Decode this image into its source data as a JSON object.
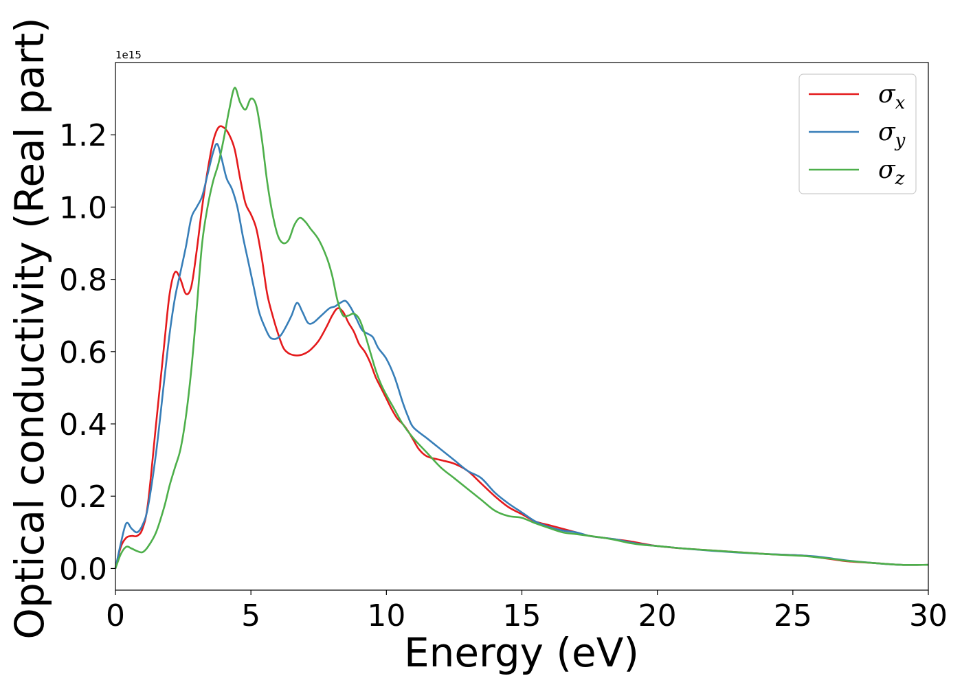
{
  "chart_data": {
    "type": "line",
    "xlabel": "Energy (eV)",
    "ylabel": "Optical conductivity (Real part)",
    "y_offset_text": "1e15",
    "xlim": [
      0,
      30
    ],
    "ylim": [
      -0.06,
      1.4
    ],
    "x_ticks": [
      0,
      5,
      10,
      15,
      20,
      25,
      30
    ],
    "x_tick_labels": [
      "0",
      "5",
      "10",
      "15",
      "20",
      "25",
      "30"
    ],
    "y_ticks": [
      0.0,
      0.2,
      0.4,
      0.6,
      0.8,
      1.0,
      1.2
    ],
    "y_tick_labels": [
      "0.0",
      "0.2",
      "0.4",
      "0.6",
      "0.8",
      "1.0",
      "1.2"
    ],
    "grid": false,
    "legend_position": "top-right",
    "series": [
      {
        "name": "σx",
        "label_base": "σ",
        "label_sub": "x",
        "color": "#e41a1c",
        "x": [
          0,
          0.2,
          0.4,
          0.6,
          0.8,
          1.0,
          1.2,
          1.5,
          1.8,
          2.0,
          2.2,
          2.4,
          2.6,
          2.8,
          3.0,
          3.2,
          3.4,
          3.6,
          3.8,
          4.0,
          4.2,
          4.4,
          4.6,
          4.8,
          5.0,
          5.2,
          5.4,
          5.6,
          5.8,
          6.0,
          6.2,
          6.4,
          6.6,
          6.8,
          7.0,
          7.2,
          7.5,
          7.8,
          8.0,
          8.2,
          8.4,
          8.6,
          8.8,
          9.0,
          9.2,
          9.4,
          9.6,
          9.8,
          10.0,
          10.2,
          10.4,
          10.6,
          10.8,
          11.0,
          11.2,
          11.5,
          12.0,
          12.5,
          13.0,
          13.5,
          14.0,
          14.5,
          15.0,
          15.5,
          16.0,
          16.5,
          17.0,
          17.5,
          18.0,
          18.5,
          19.0,
          19.5,
          20.0,
          21.0,
          22.0,
          23.0,
          24.0,
          25.0,
          25.5,
          26.0,
          26.5,
          27.0,
          28.0,
          29.0,
          30.0
        ],
        "y": [
          0.0,
          0.06,
          0.085,
          0.09,
          0.09,
          0.11,
          0.18,
          0.4,
          0.62,
          0.76,
          0.82,
          0.8,
          0.76,
          0.78,
          0.88,
          1.0,
          1.1,
          1.18,
          1.22,
          1.22,
          1.2,
          1.16,
          1.08,
          1.01,
          0.98,
          0.94,
          0.86,
          0.76,
          0.7,
          0.65,
          0.61,
          0.595,
          0.59,
          0.59,
          0.595,
          0.605,
          0.63,
          0.67,
          0.7,
          0.72,
          0.71,
          0.68,
          0.655,
          0.62,
          0.6,
          0.57,
          0.53,
          0.5,
          0.47,
          0.44,
          0.415,
          0.4,
          0.38,
          0.355,
          0.33,
          0.31,
          0.3,
          0.29,
          0.27,
          0.235,
          0.2,
          0.17,
          0.15,
          0.13,
          0.12,
          0.11,
          0.1,
          0.09,
          0.085,
          0.08,
          0.075,
          0.068,
          0.062,
          0.055,
          0.05,
          0.045,
          0.04,
          0.037,
          0.035,
          0.03,
          0.025,
          0.02,
          0.015,
          0.01,
          0.01
        ]
      },
      {
        "name": "σy",
        "label_base": "σ",
        "label_sub": "y",
        "color": "#377eb8",
        "x": [
          0,
          0.2,
          0.4,
          0.6,
          0.8,
          1.0,
          1.2,
          1.5,
          1.8,
          2.0,
          2.2,
          2.4,
          2.6,
          2.8,
          3.0,
          3.2,
          3.4,
          3.6,
          3.75,
          3.9,
          4.1,
          4.3,
          4.5,
          4.7,
          4.9,
          5.1,
          5.3,
          5.5,
          5.7,
          5.9,
          6.1,
          6.3,
          6.5,
          6.7,
          6.9,
          7.1,
          7.3,
          7.6,
          7.9,
          8.1,
          8.3,
          8.5,
          8.7,
          8.9,
          9.1,
          9.3,
          9.5,
          9.7,
          10.0,
          10.3,
          10.6,
          10.8,
          11.0,
          11.5,
          12.0,
          12.5,
          13.0,
          13.5,
          14.0,
          14.5,
          15.0,
          15.5,
          16.0,
          16.5,
          17.0,
          17.5,
          18.0,
          18.5,
          19.0,
          19.5,
          20.0,
          21.0,
          22.0,
          23.0,
          24.0,
          25.0,
          25.5,
          26.0,
          26.5,
          27.0,
          28.0,
          29.0,
          30.0
        ],
        "y": [
          0.0,
          0.07,
          0.125,
          0.11,
          0.1,
          0.12,
          0.17,
          0.32,
          0.52,
          0.65,
          0.75,
          0.82,
          0.89,
          0.97,
          1.0,
          1.03,
          1.09,
          1.15,
          1.175,
          1.14,
          1.08,
          1.05,
          1.0,
          0.92,
          0.85,
          0.78,
          0.71,
          0.67,
          0.64,
          0.635,
          0.645,
          0.67,
          0.7,
          0.735,
          0.71,
          0.68,
          0.68,
          0.7,
          0.72,
          0.725,
          0.735,
          0.74,
          0.72,
          0.69,
          0.66,
          0.65,
          0.64,
          0.61,
          0.58,
          0.53,
          0.46,
          0.42,
          0.39,
          0.36,
          0.33,
          0.3,
          0.27,
          0.25,
          0.21,
          0.18,
          0.155,
          0.13,
          0.115,
          0.105,
          0.1,
          0.09,
          0.085,
          0.08,
          0.072,
          0.066,
          0.062,
          0.055,
          0.049,
          0.044,
          0.04,
          0.037,
          0.035,
          0.032,
          0.027,
          0.022,
          0.015,
          0.01,
          0.01
        ]
      },
      {
        "name": "σz",
        "label_base": "σ",
        "label_sub": "z",
        "color": "#4daf4a",
        "x": [
          0,
          0.2,
          0.4,
          0.6,
          0.8,
          1.0,
          1.2,
          1.5,
          1.8,
          2.0,
          2.2,
          2.4,
          2.6,
          2.8,
          3.0,
          3.2,
          3.4,
          3.6,
          3.8,
          4.0,
          4.2,
          4.4,
          4.6,
          4.8,
          5.0,
          5.2,
          5.4,
          5.6,
          5.8,
          6.0,
          6.2,
          6.4,
          6.6,
          6.8,
          7.0,
          7.2,
          7.5,
          7.8,
          8.0,
          8.2,
          8.4,
          8.6,
          8.8,
          9.0,
          9.2,
          9.4,
          9.6,
          9.8,
          10.0,
          10.3,
          10.6,
          11.0,
          11.5,
          12.0,
          12.5,
          13.0,
          13.5,
          14.0,
          14.5,
          15.0,
          15.5,
          16.0,
          16.5,
          17.0,
          17.5,
          18.0,
          18.5,
          19.0,
          19.5,
          20.0,
          21.0,
          22.0,
          23.0,
          24.0,
          25.0,
          25.5,
          26.0,
          26.5,
          27.0,
          28.0,
          29.0,
          30.0
        ],
        "y": [
          0.0,
          0.04,
          0.06,
          0.055,
          0.048,
          0.045,
          0.06,
          0.1,
          0.17,
          0.23,
          0.28,
          0.33,
          0.42,
          0.55,
          0.72,
          0.9,
          1.0,
          1.07,
          1.12,
          1.19,
          1.27,
          1.33,
          1.29,
          1.27,
          1.3,
          1.28,
          1.19,
          1.07,
          0.98,
          0.92,
          0.9,
          0.91,
          0.95,
          0.97,
          0.96,
          0.94,
          0.91,
          0.86,
          0.81,
          0.74,
          0.7,
          0.7,
          0.705,
          0.69,
          0.65,
          0.6,
          0.55,
          0.51,
          0.48,
          0.44,
          0.4,
          0.36,
          0.32,
          0.28,
          0.25,
          0.22,
          0.19,
          0.16,
          0.145,
          0.14,
          0.125,
          0.112,
          0.1,
          0.095,
          0.09,
          0.085,
          0.078,
          0.07,
          0.065,
          0.062,
          0.055,
          0.05,
          0.045,
          0.04,
          0.036,
          0.034,
          0.03,
          0.026,
          0.021,
          0.015,
          0.01,
          0.01
        ]
      }
    ]
  }
}
